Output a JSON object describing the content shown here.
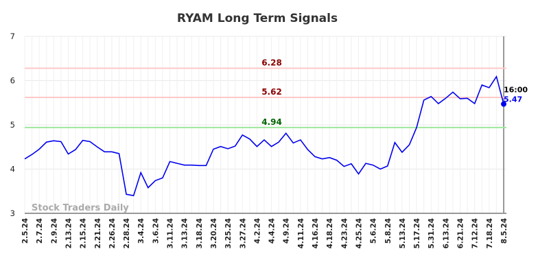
{
  "chart_data": {
    "type": "line",
    "title": "RYAM Long Term Signals",
    "categories": [
      "2.5.24",
      null,
      "2.7.24",
      null,
      "2.9.24",
      null,
      "2.13.24",
      null,
      "2.15.24",
      null,
      "2.21.24",
      null,
      "2.26.24",
      null,
      "2.28.24",
      null,
      "3.4.24",
      null,
      "3.6.24",
      null,
      "3.11.24",
      null,
      "3.13.24",
      null,
      "3.18.24",
      null,
      "3.20.24",
      null,
      "3.25.24",
      null,
      "3.27.24",
      null,
      "4.2.24",
      null,
      "4.4.24",
      null,
      "4.9.24",
      null,
      "4.11.24",
      null,
      "4.16.24",
      null,
      "4.18.24",
      null,
      "4.23.24",
      null,
      "4.25.24",
      null,
      "5.6.24",
      null,
      "5.8.24",
      null,
      "5.13.24",
      null,
      "5.17.24",
      null,
      "5.31.24",
      null,
      "6.13.24",
      null,
      "6.21.24",
      null,
      "7.12.24",
      null,
      "7.18.24",
      null,
      "8.5.24"
    ],
    "values": [
      4.23,
      4.33,
      4.45,
      4.61,
      4.64,
      4.62,
      4.34,
      4.44,
      4.65,
      4.62,
      4.5,
      4.39,
      4.39,
      4.35,
      3.43,
      3.4,
      3.92,
      3.58,
      3.74,
      3.8,
      4.17,
      4.13,
      4.09,
      4.09,
      4.08,
      4.08,
      4.45,
      4.51,
      4.46,
      4.52,
      4.77,
      4.68,
      4.51,
      4.66,
      4.51,
      4.61,
      4.81,
      4.59,
      4.66,
      4.44,
      4.28,
      4.23,
      4.26,
      4.2,
      4.06,
      4.12,
      3.89,
      4.13,
      4.09,
      4.0,
      4.07,
      4.6,
      4.38,
      4.55,
      4.94,
      5.56,
      5.64,
      5.48,
      5.6,
      5.74,
      5.59,
      5.6,
      5.48,
      5.9,
      5.84,
      6.09,
      5.47
    ],
    "color": "#0000ee",
    "ylim": [
      3,
      7
    ],
    "yticks": [
      3,
      4,
      5,
      6,
      7
    ],
    "grid": true,
    "reference_lines": [
      {
        "value": 6.28,
        "color": "#ffc8c8",
        "label_color": "#8b0000"
      },
      {
        "value": 5.62,
        "color": "#ffc8c8",
        "label_color": "#8b0000"
      },
      {
        "value": 4.94,
        "color": "#9ee89e",
        "label_color": "#006400"
      }
    ],
    "last_time_label": "16:00",
    "watermark": "Stock Traders Daily"
  }
}
